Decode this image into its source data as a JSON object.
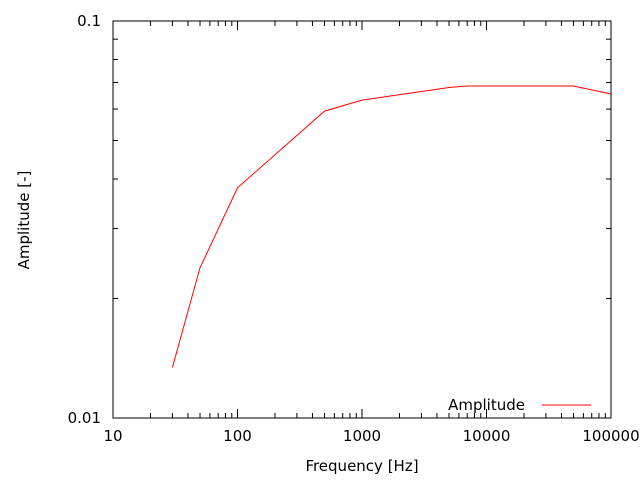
{
  "chart_data": {
    "type": "line",
    "title": "",
    "xlabel": "Frequency [Hz]",
    "ylabel": "Amplitude [-]",
    "xscale": "log",
    "yscale": "log",
    "xlim": [
      10,
      100000
    ],
    "ylim": [
      0.01,
      0.1
    ],
    "x_ticks": [
      10,
      100,
      1000,
      10000,
      100000
    ],
    "x_tick_labels": [
      "10",
      "100",
      "1000",
      "10000",
      "100000"
    ],
    "y_ticks": [
      0.01,
      0.1
    ],
    "y_tick_labels": [
      "0.01",
      "0.1"
    ],
    "grid": false,
    "legend_position": "bottom-right",
    "series": [
      {
        "name": "Amplitude",
        "color": "#ff0000",
        "x": [
          30,
          50,
          100,
          500,
          1000,
          5000,
          7000,
          50000,
          100000
        ],
        "y": [
          0.0134,
          0.0239,
          0.038,
          0.0593,
          0.0632,
          0.068,
          0.0686,
          0.0686,
          0.0655
        ]
      }
    ]
  }
}
